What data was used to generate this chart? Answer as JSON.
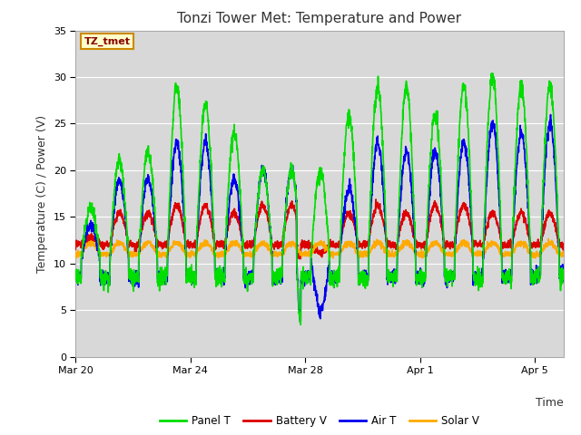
{
  "title": "Tonzi Tower Met: Temperature and Power",
  "xlabel": "Time",
  "ylabel": "Temperature (C) / Power (V)",
  "ylim": [
    0,
    35
  ],
  "yticks": [
    0,
    5,
    10,
    15,
    20,
    25,
    30,
    35
  ],
  "plot_bg_color": "#d8d8d8",
  "fig_bg_color": "#ffffff",
  "grid_color": "#ffffff",
  "colors": {
    "panel_t": "#00dd00",
    "battery_v": "#dd0000",
    "air_t": "#0000ee",
    "solar_v": "#ffaa00"
  },
  "legend": [
    "Panel T",
    "Battery V",
    "Air T",
    "Solar V"
  ],
  "xtick_labels": [
    "Mar 20",
    "Mar 24",
    "Mar 28",
    "Apr 1",
    "Apr 5"
  ],
  "xtick_positions": [
    0,
    4,
    8,
    12,
    16
  ],
  "label_box_text": "TZ_tmet",
  "label_box_facecolor": "#ffffcc",
  "label_box_edgecolor": "#cc8800",
  "n_days": 17,
  "title_fontsize": 11,
  "axis_label_fontsize": 9,
  "tick_fontsize": 8
}
